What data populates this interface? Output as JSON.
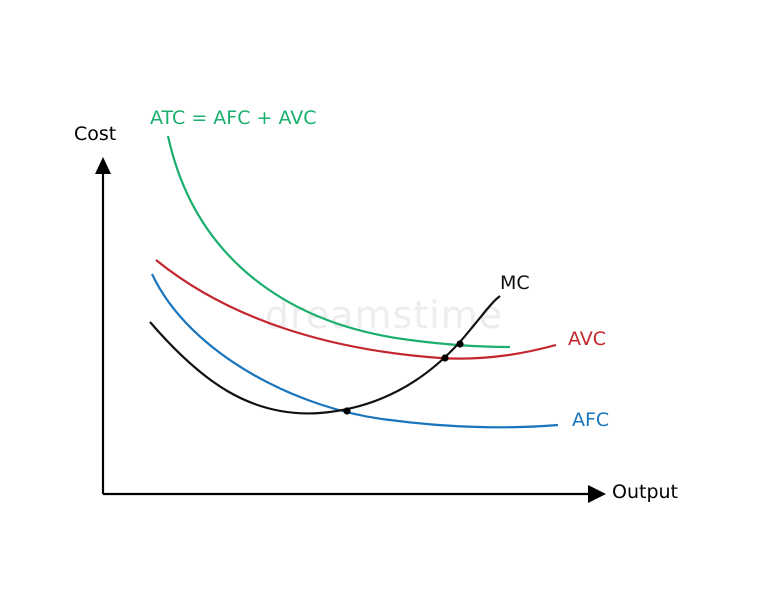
{
  "axes": {
    "y_label": "Cost",
    "x_label": "Output"
  },
  "curves": {
    "atc": {
      "label": "ATC = AFC + AVC",
      "color": "#1aaf6c"
    },
    "avc": {
      "label": "AVC",
      "color": "#c4262e"
    },
    "afc": {
      "label": "AFC",
      "color": "#1a75bc"
    },
    "mc": {
      "label": "MC",
      "color": "#111111"
    }
  },
  "watermark": "dreamstime"
}
